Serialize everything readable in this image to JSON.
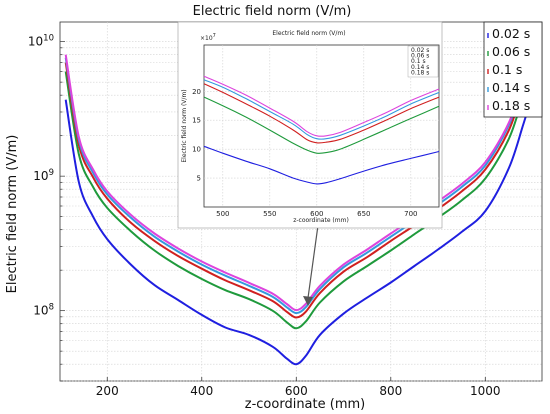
{
  "chart_data": {
    "type": "line",
    "title": "Electric field norm (V/m)",
    "xlabel": "z-coordinate (mm)",
    "ylabel": "Electric field norm (V/m)",
    "xlim": [
      100,
      1120
    ],
    "ylim": [
      30000000,
      14000000000
    ],
    "yscale": "log",
    "x_ticks": [
      200,
      400,
      600,
      800,
      1000
    ],
    "y_ticks": [
      {
        "value": 100000000,
        "base": "10",
        "exp": "8"
      },
      {
        "value": 1000000000,
        "base": "10",
        "exp": "9"
      },
      {
        "value": 10000000000,
        "base": "10",
        "exp": "10"
      }
    ],
    "legend_position": "top-right",
    "x": [
      112,
      140,
      170,
      200,
      250,
      300,
      350,
      400,
      450,
      500,
      550,
      580,
      600,
      620,
      650,
      700,
      750,
      800,
      850,
      900,
      950,
      1000,
      1050,
      1080,
      1100,
      1112
    ],
    "series": [
      {
        "name": "0.02 s",
        "color": "#1f1fe0",
        "values": [
          3700000000.0,
          900000000.0,
          500000000.0,
          340000000.0,
          220000000.0,
          155000000.0,
          120000000.0,
          93000000.0,
          75000000.0,
          66000000.0,
          54000000.0,
          44000000.0,
          40000000.0,
          46000000.0,
          66000000.0,
          95000000.0,
          125000000.0,
          162000000.0,
          215000000.0,
          285000000.0,
          385000000.0,
          550000000.0,
          1150000000.0,
          2400000000.0,
          4000000000.0,
          5000000000.0
        ]
      },
      {
        "name": "0.06 s",
        "color": "#1f9a3c",
        "values": [
          6000000000.0,
          1450000000.0,
          830000000.0,
          580000000.0,
          390000000.0,
          280000000.0,
          215000000.0,
          172000000.0,
          142000000.0,
          122000000.0,
          100000000.0,
          82000000.0,
          74000000.0,
          83000000.0,
          115000000.0,
          165000000.0,
          215000000.0,
          280000000.0,
          370000000.0,
          490000000.0,
          660000000.0,
          960000000.0,
          1900000000.0,
          3900000000.0,
          6300000000.0,
          7800000000.0
        ]
      },
      {
        "name": "0.1 s",
        "color": "#d02020",
        "values": [
          7000000000.0,
          1700000000.0,
          980000000.0,
          680000000.0,
          450000000.0,
          330000000.0,
          255000000.0,
          205000000.0,
          168000000.0,
          142000000.0,
          118000000.0,
          98000000.0,
          89000000.0,
          98000000.0,
          135000000.0,
          195000000.0,
          250000000.0,
          330000000.0,
          430000000.0,
          570000000.0,
          770000000.0,
          1120000000.0,
          2200000000.0,
          4500000000.0,
          7300000000.0,
          9000000000.0
        ]
      },
      {
        "name": "0.14 s",
        "color": "#3399dd",
        "values": [
          7600000000.0,
          1850000000.0,
          1060000000.0,
          730000000.0,
          490000000.0,
          355000000.0,
          275000000.0,
          220000000.0,
          182000000.0,
          153000000.0,
          127000000.0,
          106000000.0,
          96000000.0,
          106000000.0,
          145000000.0,
          210000000.0,
          270000000.0,
          355000000.0,
          465000000.0,
          615000000.0,
          830000000.0,
          1200000000.0,
          2400000000.0,
          4900000000.0,
          7900000000.0,
          9700000000.0
        ]
      },
      {
        "name": "0.18 s",
        "color": "#dd44dd",
        "values": [
          8000000000.0,
          1950000000.0,
          1120000000.0,
          770000000.0,
          515000000.0,
          375000000.0,
          290000000.0,
          232000000.0,
          192000000.0,
          161000000.0,
          134000000.0,
          112000000.0,
          101000000.0,
          112000000.0,
          153000000.0,
          220000000.0,
          285000000.0,
          375000000.0,
          490000000.0,
          650000000.0,
          875000000.0,
          1270000000.0,
          2500000000.0,
          5100000000.0,
          8300000000.0,
          10200000000.0
        ]
      }
    ],
    "inset": {
      "title": "Electric field norm (V/m)",
      "xlabel": "z-coordinate (mm)",
      "ylabel": "Electric field norm (V/m)",
      "multiplier_base": "×10",
      "multiplier_exp": "7",
      "xlim": [
        480,
        730
      ],
      "ylim": [
        0,
        28
      ],
      "yscale": "linear",
      "x_ticks": [
        500,
        550,
        600,
        650,
        700
      ],
      "y_ticks": [
        5,
        10,
        15,
        20
      ],
      "legend_position": "top-right",
      "x": [
        480,
        500,
        525,
        550,
        575,
        590,
        600,
        610,
        625,
        650,
        675,
        700,
        730
      ],
      "series": [
        {
          "name": "0.02 s",
          "values": [
            10.5,
            9.3,
            7.9,
            6.6,
            5.0,
            4.3,
            4.0,
            4.2,
            4.9,
            6.2,
            7.4,
            8.4,
            9.6
          ]
        },
        {
          "name": "0.06 s",
          "values": [
            19.0,
            17.5,
            15.5,
            13.3,
            11.0,
            9.8,
            9.3,
            9.4,
            10.0,
            11.7,
            13.5,
            15.3,
            17.4
          ]
        },
        {
          "name": "0.1 s",
          "values": [
            21.3,
            19.8,
            17.8,
            15.7,
            13.3,
            11.6,
            11.1,
            11.2,
            11.7,
            13.3,
            15.1,
            17.0,
            19.0
          ]
        },
        {
          "name": "0.14 s",
          "values": [
            22.0,
            20.7,
            18.7,
            16.5,
            14.3,
            12.5,
            11.8,
            11.8,
            12.4,
            14.0,
            15.8,
            17.8,
            19.8
          ]
        },
        {
          "name": "0.18 s",
          "values": [
            22.6,
            21.2,
            19.3,
            17.1,
            14.8,
            13.0,
            12.3,
            12.3,
            12.9,
            14.6,
            16.4,
            18.4,
            20.4
          ]
        }
      ]
    }
  }
}
